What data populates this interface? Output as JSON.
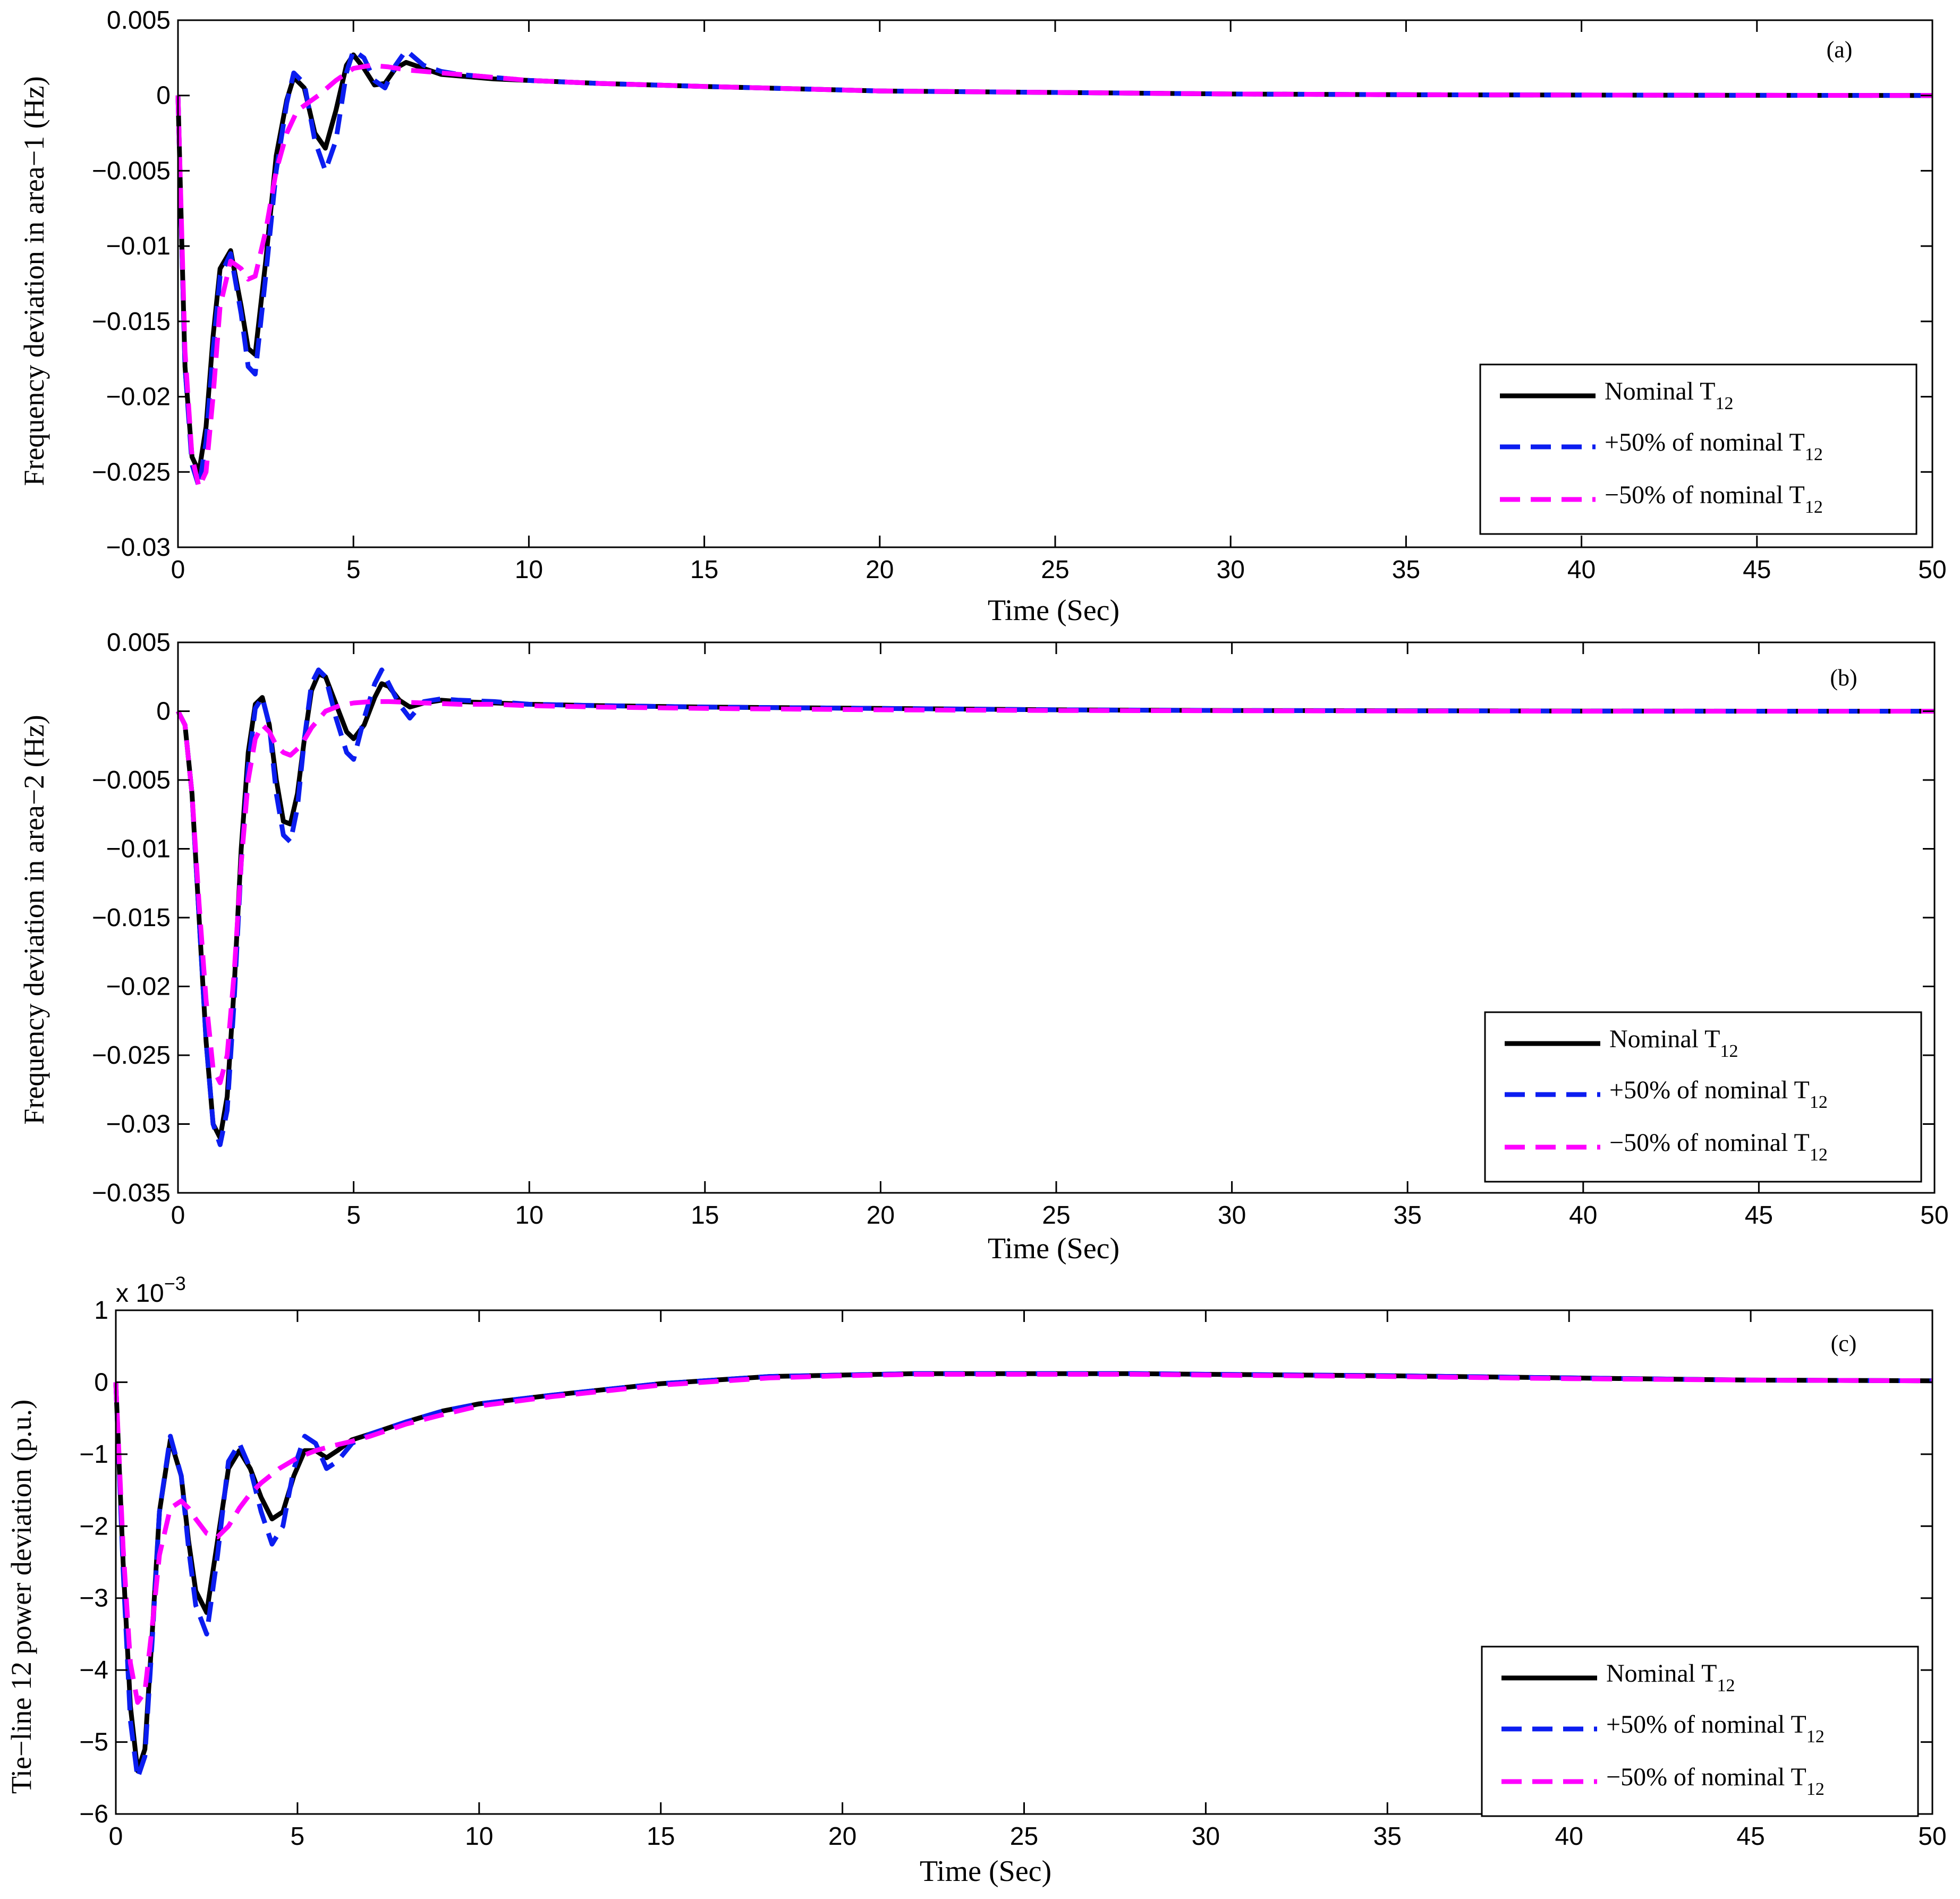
{
  "colors": {
    "nominal": "#000000",
    "plus50": "#0b1df0",
    "minus50": "#ff00ff",
    "axis": "#000000",
    "background": "#ffffff"
  },
  "legend_placement": "bottom-right",
  "chart_data": [
    {
      "type": "line",
      "panel_label": "(a)",
      "xlabel": "Time (Sec)",
      "ylabel": "Frequency deviation in area−1 (Hz)",
      "xlim": [
        0,
        50
      ],
      "ylim": [
        -0.03,
        0.005
      ],
      "xticks": [
        0,
        5,
        10,
        15,
        20,
        25,
        30,
        35,
        40,
        45,
        50
      ],
      "xtick_labels": [
        "0",
        "5",
        "10",
        "15",
        "20",
        "25",
        "30",
        "35",
        "40",
        "45",
        "50"
      ],
      "yticks": [
        0.005,
        0,
        -0.005,
        -0.01,
        -0.015,
        -0.02,
        -0.025,
        -0.03
      ],
      "ytick_labels": [
        "0.005",
        "0",
        "−0.005",
        "−0.01",
        "−0.015",
        "−0.02",
        "−0.025",
        "−0.03"
      ],
      "exponent_label": "",
      "grid": false,
      "legend": [
        {
          "series": 0,
          "text": "Nominal T",
          "sub": "12"
        },
        {
          "series": 1,
          "text": "+50% of nominal T",
          "sub": "12"
        },
        {
          "series": 2,
          "text": "−50% of nominal T",
          "sub": "12"
        }
      ],
      "series": [
        {
          "style": "solid",
          "color": "#000000",
          "x": [
            0,
            0.2,
            0.4,
            0.6,
            0.8,
            1.0,
            1.2,
            1.5,
            1.8,
            2.0,
            2.2,
            2.5,
            2.8,
            3.1,
            3.3,
            3.6,
            3.9,
            4.2,
            4.5,
            4.8,
            5.0,
            5.3,
            5.6,
            5.9,
            6.2,
            6.5,
            7.0,
            7.5,
            8.0,
            9,
            10,
            12,
            15,
            20,
            25,
            30,
            35,
            40,
            45,
            50
          ],
          "y": [
            0,
            -0.018,
            -0.024,
            -0.025,
            -0.022,
            -0.016,
            -0.0115,
            -0.0103,
            -0.014,
            -0.0168,
            -0.0172,
            -0.011,
            -0.004,
            -0.0003,
            0.0012,
            0.0005,
            -0.0025,
            -0.0035,
            -0.001,
            0.002,
            0.0027,
            0.0018,
            0.0007,
            0.0008,
            0.0018,
            0.0022,
            0.0018,
            0.0014,
            0.0013,
            0.0011,
            0.001,
            0.0008,
            0.0006,
            0.0003,
            0.0002,
            0.0001,
            5e-05,
            3e-05,
            1e-05,
            0
          ]
        },
        {
          "style": "dashed",
          "color": "#0b1df0",
          "x": [
            0,
            0.2,
            0.4,
            0.6,
            0.8,
            1.0,
            1.2,
            1.5,
            1.8,
            2.0,
            2.2,
            2.5,
            2.8,
            3.1,
            3.3,
            3.6,
            3.9,
            4.2,
            4.5,
            4.8,
            5.0,
            5.3,
            5.6,
            5.9,
            6.2,
            6.5,
            7.0,
            7.5,
            8.0,
            9,
            10,
            12,
            15,
            20,
            25,
            30,
            35,
            40,
            45,
            50
          ],
          "y": [
            0,
            -0.018,
            -0.0245,
            -0.026,
            -0.023,
            -0.017,
            -0.012,
            -0.0105,
            -0.0145,
            -0.018,
            -0.0185,
            -0.012,
            -0.005,
            -0.0005,
            0.0015,
            0.0008,
            -0.003,
            -0.005,
            -0.003,
            0.0015,
            0.003,
            0.0025,
            0.001,
            0.0005,
            0.002,
            0.003,
            0.002,
            0.0016,
            0.0014,
            0.0012,
            0.001,
            0.0008,
            0.0006,
            0.0003,
            0.0002,
            0.0001,
            5e-05,
            3e-05,
            1e-05,
            0
          ]
        },
        {
          "style": "dashed",
          "color": "#ff00ff",
          "x": [
            0,
            0.2,
            0.4,
            0.6,
            0.8,
            1.0,
            1.2,
            1.5,
            1.8,
            2.0,
            2.2,
            2.5,
            2.8,
            3.1,
            3.4,
            3.7,
            4.0,
            4.5,
            5.0,
            5.5,
            6.0,
            6.5,
            7.0,
            8.0,
            9,
            10,
            12,
            15,
            20,
            25,
            30,
            35,
            40,
            45,
            50
          ],
          "y": [
            0,
            -0.017,
            -0.024,
            -0.026,
            -0.025,
            -0.02,
            -0.014,
            -0.011,
            -0.0115,
            -0.0122,
            -0.012,
            -0.009,
            -0.005,
            -0.0025,
            -0.001,
            -0.0005,
            0,
            0.001,
            0.0018,
            0.002,
            0.0019,
            0.0017,
            0.0016,
            0.0014,
            0.0012,
            0.001,
            0.0008,
            0.0006,
            0.0003,
            0.0002,
            0.0001,
            5e-05,
            3e-05,
            1e-05,
            0
          ]
        }
      ]
    },
    {
      "type": "line",
      "panel_label": "(b)",
      "xlabel": "Time (Sec)",
      "ylabel": "Frequency deviation in area−2 (Hz)",
      "xlim": [
        0,
        50
      ],
      "ylim": [
        -0.035,
        0.005
      ],
      "xticks": [
        0,
        5,
        10,
        15,
        20,
        25,
        30,
        35,
        40,
        45,
        50
      ],
      "xtick_labels": [
        "0",
        "5",
        "10",
        "15",
        "20",
        "25",
        "30",
        "35",
        "40",
        "45",
        "50"
      ],
      "yticks": [
        0.005,
        0,
        -0.005,
        -0.01,
        -0.015,
        -0.02,
        -0.025,
        -0.03,
        -0.035
      ],
      "ytick_labels": [
        "0.005",
        "0",
        "−0.005",
        "−0.01",
        "−0.015",
        "−0.02",
        "−0.025",
        "−0.03",
        "−0.035"
      ],
      "exponent_label": "",
      "grid": false,
      "legend": [
        {
          "series": 0,
          "text": "Nominal T",
          "sub": "12"
        },
        {
          "series": 1,
          "text": "+50% of nominal T",
          "sub": "12"
        },
        {
          "series": 2,
          "text": "−50% of nominal T",
          "sub": "12"
        }
      ],
      "series": [
        {
          "style": "solid",
          "color": "#000000",
          "x": [
            0,
            0.2,
            0.4,
            0.6,
            0.8,
            1.0,
            1.2,
            1.4,
            1.6,
            1.8,
            2.0,
            2.2,
            2.4,
            2.6,
            2.8,
            3.0,
            3.2,
            3.4,
            3.6,
            3.8,
            4.0,
            4.2,
            4.5,
            4.8,
            5.0,
            5.3,
            5.6,
            5.8,
            6.0,
            6.3,
            6.6,
            7.0,
            7.5,
            8,
            9,
            10,
            12,
            15,
            20,
            25,
            30,
            35,
            40,
            45,
            50
          ],
          "y": [
            0,
            -0.001,
            -0.006,
            -0.015,
            -0.024,
            -0.03,
            -0.031,
            -0.028,
            -0.02,
            -0.01,
            -0.003,
            0.0005,
            0.001,
            -0.001,
            -0.005,
            -0.008,
            -0.0082,
            -0.006,
            -0.002,
            0.0015,
            0.0027,
            0.0025,
            0.0005,
            -0.0015,
            -0.002,
            -0.001,
            0.001,
            0.002,
            0.0018,
            0.0008,
            0.0003,
            0.0006,
            0.0008,
            0.0007,
            0.0006,
            0.0005,
            0.0004,
            0.0003,
            0.0002,
            0.0001,
            5e-05,
            3e-05,
            1e-05,
            0,
            0
          ]
        },
        {
          "style": "dashed",
          "color": "#0b1df0",
          "x": [
            0,
            0.2,
            0.4,
            0.6,
            0.8,
            1.0,
            1.2,
            1.4,
            1.6,
            1.8,
            2.0,
            2.2,
            2.4,
            2.6,
            2.8,
            3.0,
            3.2,
            3.4,
            3.6,
            3.8,
            4.0,
            4.2,
            4.5,
            4.8,
            5.0,
            5.3,
            5.6,
            5.8,
            6.0,
            6.3,
            6.6,
            7.0,
            7.5,
            8,
            9,
            10,
            12,
            15,
            20,
            25,
            30,
            35,
            40,
            45,
            50
          ],
          "y": [
            0,
            -0.001,
            -0.006,
            -0.015,
            -0.024,
            -0.03,
            -0.0315,
            -0.029,
            -0.021,
            -0.011,
            -0.004,
            0.0002,
            0.001,
            -0.001,
            -0.006,
            -0.009,
            -0.0095,
            -0.007,
            -0.002,
            0.002,
            0.003,
            0.0025,
            -0.0005,
            -0.003,
            -0.0035,
            -0.0005,
            0.002,
            0.003,
            0.002,
            0.0005,
            -0.0005,
            0.0007,
            0.0009,
            0.0008,
            0.0007,
            0.0005,
            0.0004,
            0.0003,
            0.0002,
            0.0001,
            5e-05,
            3e-05,
            1e-05,
            0,
            0
          ]
        },
        {
          "style": "dashed",
          "color": "#ff00ff",
          "x": [
            0,
            0.2,
            0.4,
            0.6,
            0.8,
            1.0,
            1.2,
            1.4,
            1.6,
            1.8,
            2.0,
            2.2,
            2.4,
            2.6,
            2.8,
            3.0,
            3.2,
            3.5,
            3.8,
            4.2,
            4.6,
            5.0,
            5.5,
            6.0,
            7.0,
            8,
            9,
            10,
            12,
            15,
            20,
            25,
            30,
            35,
            40,
            45,
            50
          ],
          "y": [
            0,
            -0.001,
            -0.006,
            -0.014,
            -0.021,
            -0.026,
            -0.027,
            -0.025,
            -0.019,
            -0.011,
            -0.005,
            -0.002,
            -0.001,
            -0.0015,
            -0.0025,
            -0.003,
            -0.0032,
            -0.0025,
            -0.0012,
            0,
            0.0004,
            0.0006,
            0.0007,
            0.0007,
            0.0006,
            0.0005,
            0.0005,
            0.0004,
            0.0003,
            0.0002,
            0.0001,
            5e-05,
            3e-05,
            1e-05,
            0,
            0,
            0
          ]
        }
      ]
    },
    {
      "type": "line",
      "panel_label": "(c)",
      "xlabel": "Time (Sec)",
      "ylabel": "Tie−line 12 power deviation (p.u.)",
      "xlim": [
        0,
        50
      ],
      "ylim": [
        -6,
        1
      ],
      "xticks": [
        0,
        5,
        10,
        15,
        20,
        25,
        30,
        35,
        40,
        45,
        50
      ],
      "xtick_labels": [
        "0",
        "5",
        "10",
        "15",
        "20",
        "25",
        "30",
        "35",
        "40",
        "45",
        "50"
      ],
      "yticks": [
        1,
        0,
        -1,
        -2,
        -3,
        -4,
        -5,
        -6
      ],
      "ytick_labels": [
        "1",
        "0",
        "−1",
        "−2",
        "−3",
        "−4",
        "−5",
        "−6"
      ],
      "exponent_label": "x 10",
      "exponent_power": "−3",
      "grid": false,
      "legend": [
        {
          "series": 0,
          "text": "Nominal T",
          "sub": "12"
        },
        {
          "series": 1,
          "text": "+50% of nominal T",
          "sub": "12"
        },
        {
          "series": 2,
          "text": "−50% of nominal T",
          "sub": "12"
        }
      ],
      "series": [
        {
          "style": "solid",
          "color": "#000000",
          "x": [
            0,
            0.2,
            0.4,
            0.6,
            0.8,
            1.0,
            1.2,
            1.5,
            1.8,
            2.0,
            2.2,
            2.5,
            2.8,
            3.1,
            3.4,
            3.7,
            4.0,
            4.3,
            4.6,
            4.9,
            5.2,
            5.5,
            5.8,
            6.1,
            6.5,
            7,
            8,
            9,
            10,
            12,
            15,
            18,
            20,
            22,
            25,
            28,
            30,
            35,
            40,
            45,
            50
          ],
          "y": [
            0,
            -2.5,
            -4.5,
            -5.4,
            -5.1,
            -3.5,
            -1.8,
            -0.8,
            -1.3,
            -2.2,
            -2.9,
            -3.2,
            -2.2,
            -1.2,
            -0.95,
            -1.2,
            -1.6,
            -1.9,
            -1.8,
            -1.3,
            -0.95,
            -0.95,
            -1.05,
            -0.95,
            -0.8,
            -0.72,
            -0.55,
            -0.4,
            -0.3,
            -0.18,
            -0.02,
            0.08,
            0.1,
            0.12,
            0.12,
            0.12,
            0.11,
            0.09,
            0.06,
            0.03,
            0.02
          ]
        },
        {
          "style": "dashed",
          "color": "#0b1df0",
          "x": [
            0,
            0.2,
            0.4,
            0.6,
            0.8,
            1.0,
            1.2,
            1.5,
            1.8,
            2.0,
            2.2,
            2.5,
            2.8,
            3.1,
            3.4,
            3.7,
            4.0,
            4.3,
            4.6,
            4.9,
            5.2,
            5.5,
            5.8,
            6.1,
            6.5,
            7,
            8,
            9,
            10,
            12,
            15,
            18,
            20,
            22,
            25,
            28,
            30,
            35,
            40,
            45,
            50
          ],
          "y": [
            0,
            -2.6,
            -4.7,
            -5.5,
            -5.2,
            -3.6,
            -1.8,
            -0.75,
            -1.3,
            -2.3,
            -3.1,
            -3.5,
            -2.4,
            -1.1,
            -0.85,
            -1.2,
            -1.8,
            -2.25,
            -2.0,
            -1.2,
            -0.75,
            -0.85,
            -1.2,
            -1.1,
            -0.85,
            -0.72,
            -0.55,
            -0.4,
            -0.3,
            -0.18,
            -0.02,
            0.08,
            0.1,
            0.12,
            0.12,
            0.12,
            0.11,
            0.09,
            0.06,
            0.03,
            0.02
          ]
        },
        {
          "style": "dashed",
          "color": "#ff00ff",
          "x": [
            0,
            0.2,
            0.4,
            0.6,
            0.8,
            1.0,
            1.2,
            1.5,
            1.8,
            2.0,
            2.2,
            2.5,
            2.8,
            3.1,
            3.4,
            3.7,
            4.0,
            4.5,
            5.0,
            5.5,
            6.0,
            6.5,
            7,
            8,
            9,
            10,
            12,
            15,
            18,
            20,
            22,
            25,
            28,
            30,
            35,
            40,
            45,
            50
          ],
          "y": [
            0,
            -2.3,
            -3.9,
            -4.45,
            -4.3,
            -3.4,
            -2.4,
            -1.75,
            -1.65,
            -1.75,
            -1.9,
            -2.1,
            -2.15,
            -2.0,
            -1.75,
            -1.55,
            -1.4,
            -1.2,
            -1.05,
            -0.95,
            -0.88,
            -0.82,
            -0.75,
            -0.58,
            -0.45,
            -0.33,
            -0.2,
            -0.04,
            0.06,
            0.09,
            0.11,
            0.11,
            0.11,
            0.1,
            0.08,
            0.05,
            0.03,
            0.02
          ]
        }
      ]
    }
  ]
}
